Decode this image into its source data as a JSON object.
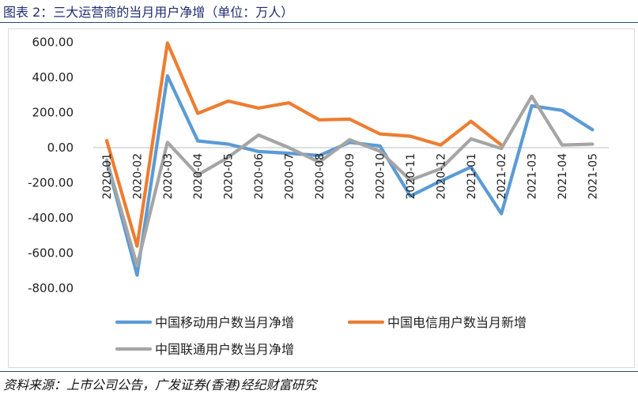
{
  "caption": "图表 2：三大运营商的当月用户净增（单位：万人）",
  "source": "资料来源：上市公司公告，广发证券(香港)经纪财富研究",
  "chart_data": {
    "type": "line",
    "categories": [
      "2020-01",
      "2020-02",
      "2020-03",
      "2020-04",
      "2020-05",
      "2020-06",
      "2020-07",
      "2020-08",
      "2020-09",
      "2020-10",
      "2020-11",
      "2020-12",
      "2021-01",
      "2021-02",
      "2021-03",
      "2021-04",
      "2021-05"
    ],
    "y_ticks": [
      "600.00",
      "400.00",
      "200.00",
      "0.00",
      "-200.00",
      "-400.00",
      "-600.00",
      "-800.00"
    ],
    "ylim": [
      -800,
      600
    ],
    "grid": false,
    "legend_position": "bottom",
    "series": [
      {
        "name": "中国移动用户数当月净增",
        "color": "#5b9bd5",
        "values": [
          -75,
          -725,
          408,
          38,
          20,
          -22,
          -32,
          -45,
          30,
          10,
          -275,
          -190,
          -110,
          -375,
          238,
          212,
          102
        ]
      },
      {
        "name": "中国电信用户数当月新增",
        "color": "#ed7d31",
        "values": [
          40,
          -560,
          595,
          195,
          265,
          225,
          255,
          158,
          162,
          78,
          65,
          15,
          150,
          15,
          null,
          null,
          null
        ]
      },
      {
        "name": "中国联通用户数当月净增",
        "color": "#a5a5a5",
        "values": [
          -70,
          -670,
          30,
          -155,
          -55,
          72,
          0,
          -82,
          45,
          -20,
          -185,
          -120,
          50,
          -5,
          292,
          15,
          20
        ]
      }
    ]
  }
}
